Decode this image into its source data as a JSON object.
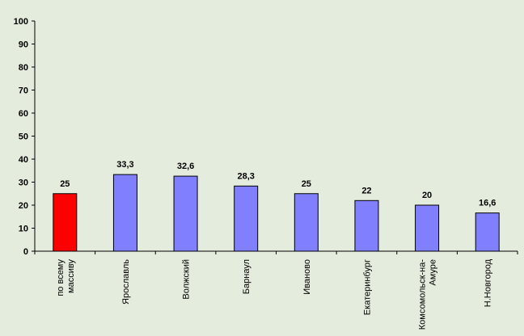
{
  "chart_data": {
    "type": "bar",
    "title": "",
    "xlabel": "",
    "ylabel": "",
    "ylim": [
      0,
      100
    ],
    "yticks": [
      0,
      10,
      20,
      30,
      40,
      50,
      60,
      70,
      80,
      90,
      100
    ],
    "categories": [
      [
        "по всему",
        "массиву"
      ],
      [
        "Ярославль"
      ],
      [
        "Волжский"
      ],
      [
        "Барнаул"
      ],
      [
        "Иваново"
      ],
      [
        "Екатеринбург"
      ],
      [
        "Комсомольск-на-",
        "Амуре"
      ],
      [
        "Н.Новгород"
      ]
    ],
    "values": [
      25,
      33.3,
      32.6,
      28.3,
      25,
      22,
      20,
      16.6
    ],
    "value_labels": [
      "25",
      "33,3",
      "32,6",
      "28,3",
      "25",
      "22",
      "20",
      "16,6"
    ],
    "bar_colors": [
      "#ff0000",
      "#8080ff",
      "#8080ff",
      "#8080ff",
      "#8080ff",
      "#8080ff",
      "#8080ff",
      "#8080ff"
    ],
    "grid": false,
    "legend": "none"
  }
}
